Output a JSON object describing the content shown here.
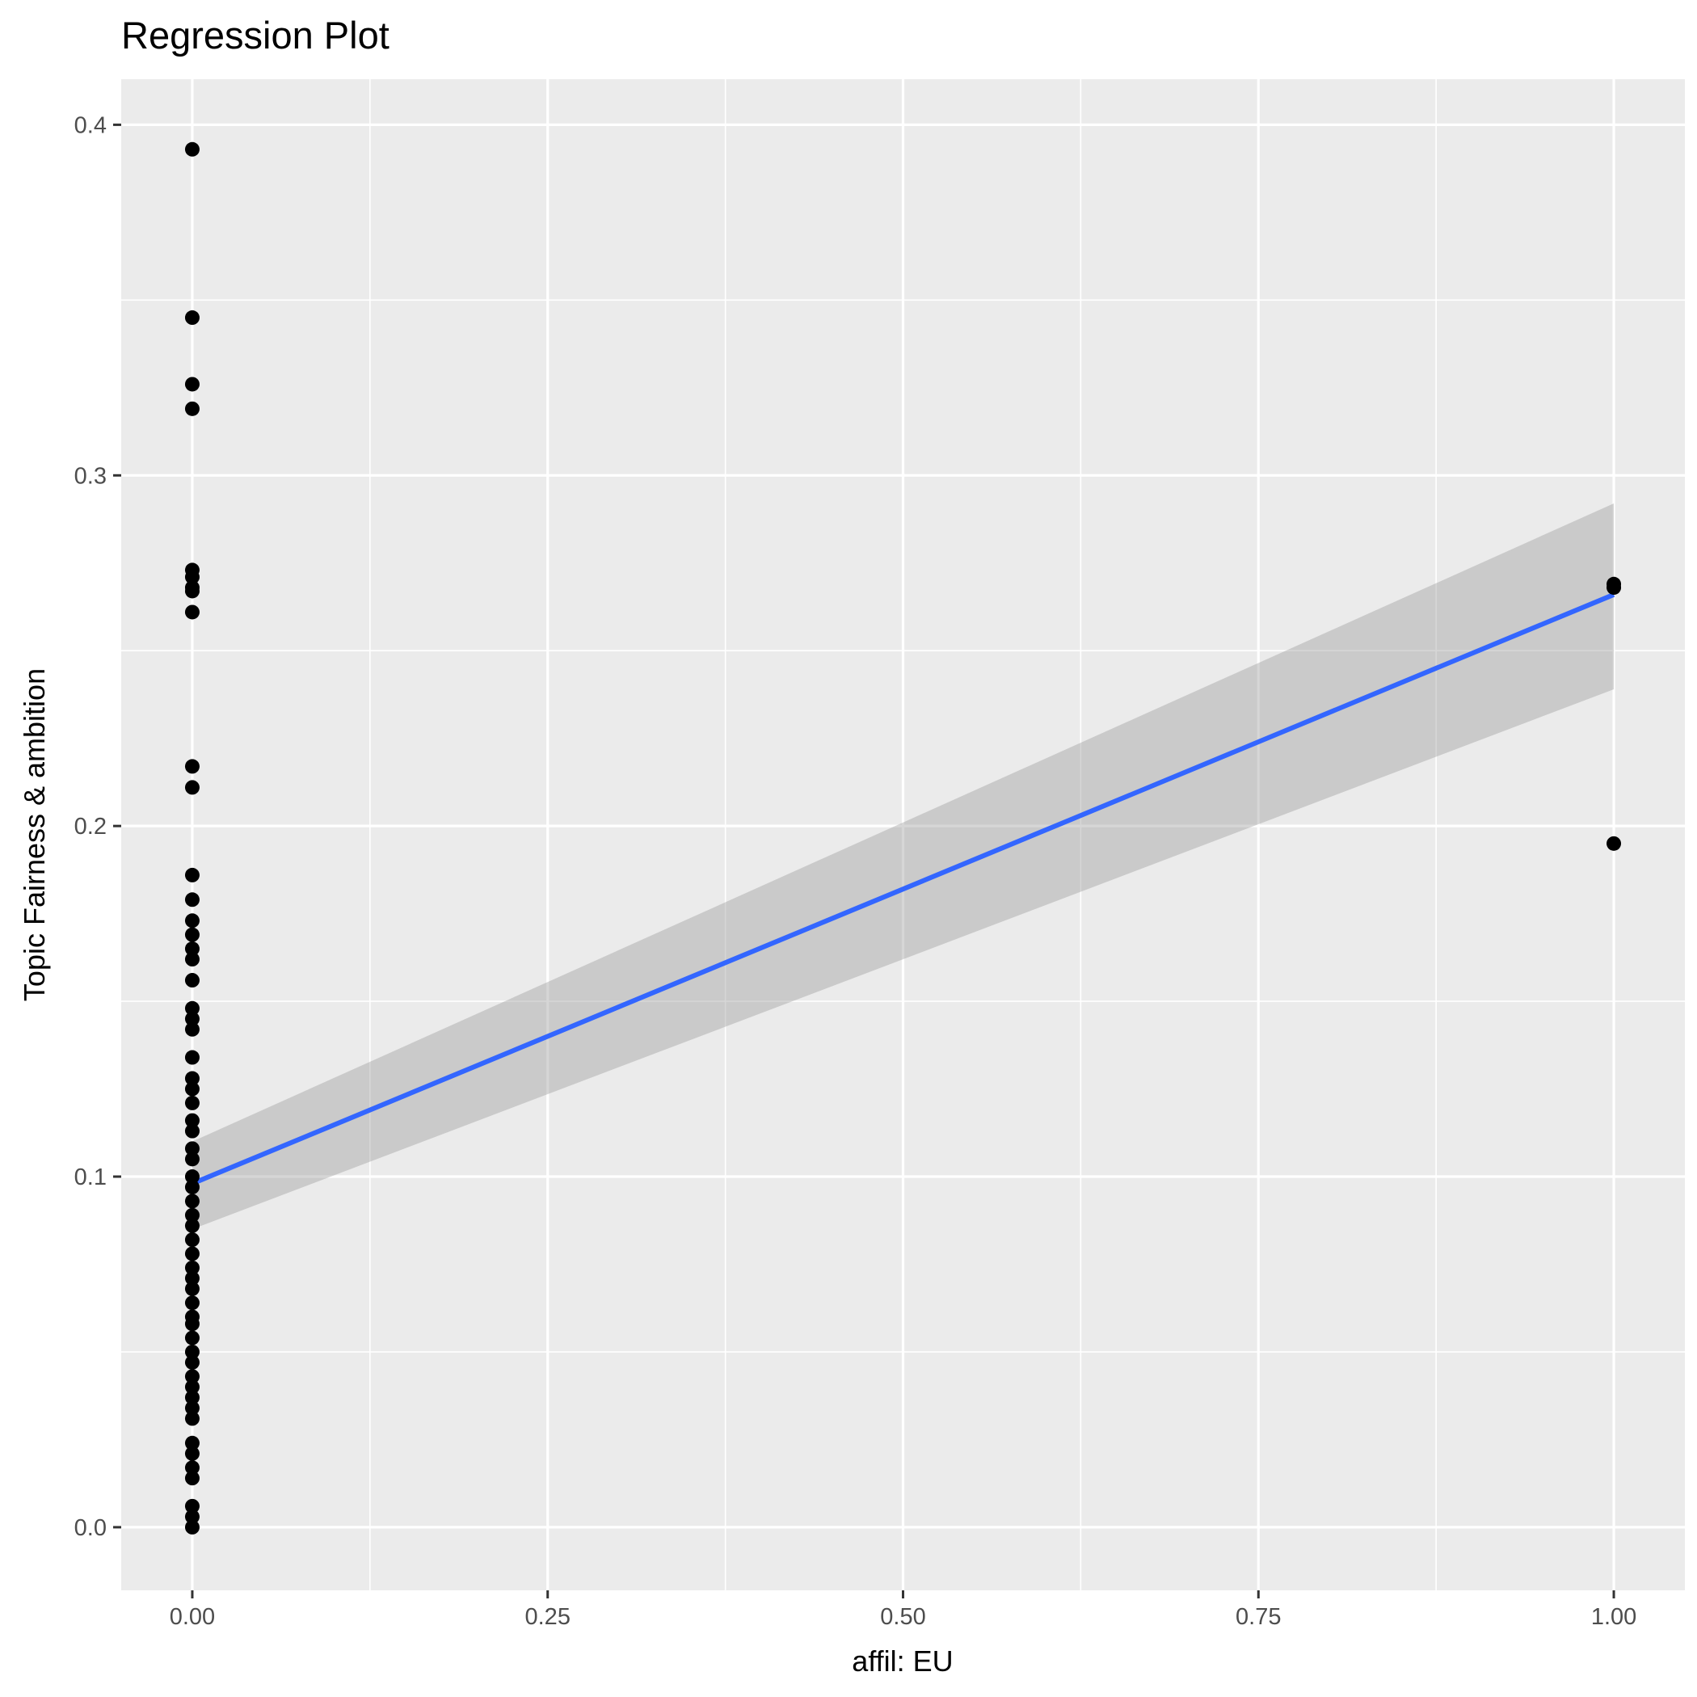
{
  "chart_data": {
    "type": "scatter",
    "title": "Regression Plot",
    "xlabel": "affil: EU",
    "ylabel": "Topic Fairness & ambition",
    "xlim": [
      -0.05,
      1.05
    ],
    "ylim": [
      -0.018,
      0.413
    ],
    "x_ticks": [
      0.0,
      0.25,
      0.5,
      0.75,
      1.0
    ],
    "x_tick_labels": [
      "0.00",
      "0.25",
      "0.50",
      "0.75",
      "1.00"
    ],
    "y_ticks": [
      0.0,
      0.1,
      0.2,
      0.3,
      0.4
    ],
    "y_tick_labels": [
      "0.0",
      "0.1",
      "0.2",
      "0.3",
      "0.4"
    ],
    "grid": true,
    "background": "#ebebeb",
    "grid_color": "#ffffff",
    "point_color": "#000000",
    "line_color": "#3366ff",
    "band_color": "#999999",
    "regression": {
      "x": [
        0.0,
        1.0
      ],
      "y": [
        0.098,
        0.266
      ],
      "ci_lower": [
        0.085,
        0.239
      ],
      "ci_upper": [
        0.11,
        0.292
      ]
    },
    "points": [
      [
        0,
        0.393
      ],
      [
        0,
        0.345
      ],
      [
        0,
        0.326
      ],
      [
        0,
        0.319
      ],
      [
        0,
        0.273
      ],
      [
        0,
        0.271
      ],
      [
        0,
        0.268
      ],
      [
        0,
        0.267
      ],
      [
        0,
        0.261
      ],
      [
        0,
        0.217
      ],
      [
        0,
        0.211
      ],
      [
        0,
        0.186
      ],
      [
        0,
        0.179
      ],
      [
        0,
        0.173
      ],
      [
        0,
        0.169
      ],
      [
        0,
        0.165
      ],
      [
        0,
        0.162
      ],
      [
        0,
        0.156
      ],
      [
        0,
        0.148
      ],
      [
        0,
        0.145
      ],
      [
        0,
        0.142
      ],
      [
        0,
        0.134
      ],
      [
        0,
        0.128
      ],
      [
        0,
        0.125
      ],
      [
        0,
        0.121
      ],
      [
        0,
        0.116
      ],
      [
        0,
        0.113
      ],
      [
        0,
        0.108
      ],
      [
        0,
        0.105
      ],
      [
        0,
        0.1
      ],
      [
        0,
        0.097
      ],
      [
        0,
        0.093
      ],
      [
        0,
        0.089
      ],
      [
        0,
        0.086
      ],
      [
        0,
        0.082
      ],
      [
        0,
        0.078
      ],
      [
        0,
        0.074
      ],
      [
        0,
        0.071
      ],
      [
        0,
        0.068
      ],
      [
        0,
        0.064
      ],
      [
        0,
        0.06
      ],
      [
        0,
        0.058
      ],
      [
        0,
        0.054
      ],
      [
        0,
        0.05
      ],
      [
        0,
        0.047
      ],
      [
        0,
        0.043
      ],
      [
        0,
        0.04
      ],
      [
        0,
        0.037
      ],
      [
        0,
        0.034
      ],
      [
        0,
        0.031
      ],
      [
        0,
        0.024
      ],
      [
        0,
        0.021
      ],
      [
        0,
        0.017
      ],
      [
        0,
        0.014
      ],
      [
        0,
        0.006
      ],
      [
        0,
        0.003
      ],
      [
        0,
        0.0
      ],
      [
        1,
        0.269
      ],
      [
        1,
        0.268
      ],
      [
        1,
        0.195
      ]
    ]
  }
}
